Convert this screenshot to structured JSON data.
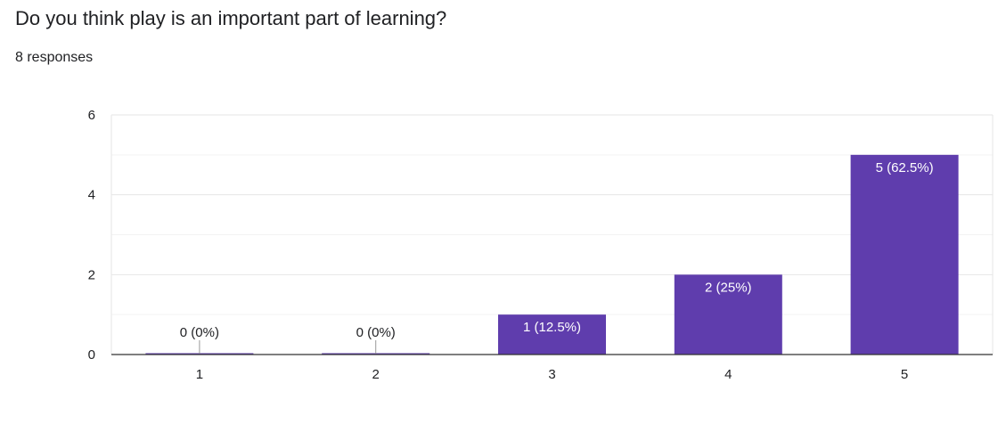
{
  "question": {
    "title": "Do you think play is an important part of learning?",
    "responses": "8 responses"
  },
  "colors": {
    "bar": "#5f3dad",
    "grid_major": "#e6e6e6",
    "grid_minor": "#f3f3f3",
    "baseline": "#333333",
    "text": "#202124",
    "label_inside": "#ffffff"
  },
  "chart_data": {
    "type": "bar",
    "categories": [
      "1",
      "2",
      "3",
      "4",
      "5"
    ],
    "values": [
      0,
      0,
      1,
      2,
      5
    ],
    "data_labels": [
      "0 (0%)",
      "0 (0%)",
      "1 (12.5%)",
      "2 (25%)",
      "5 (62.5%)"
    ],
    "y_ticks": [
      0,
      2,
      4,
      6
    ],
    "ylim": [
      0,
      6
    ],
    "grid": true,
    "legend": "none"
  }
}
